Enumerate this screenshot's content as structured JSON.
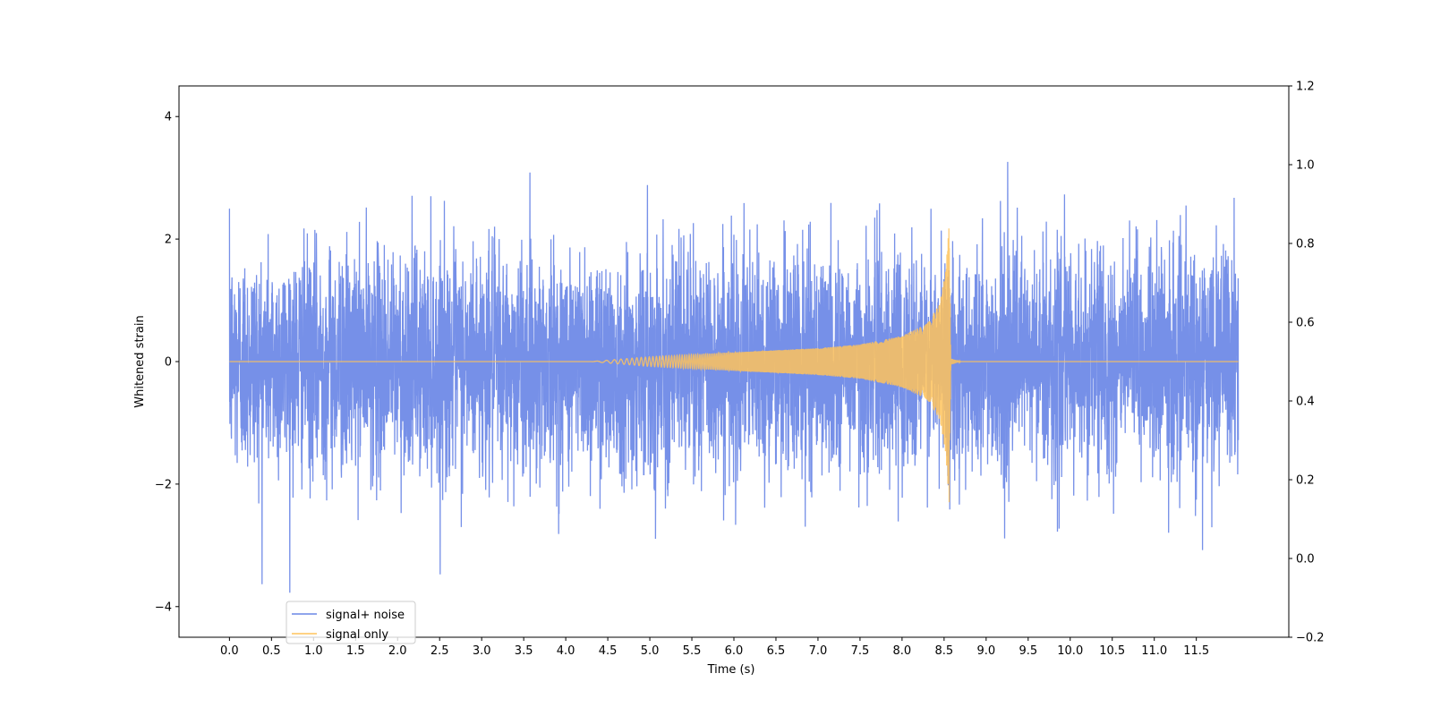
{
  "chart_data": {
    "type": "line",
    "title": "",
    "xlabel": "Time (s)",
    "ylabel": "Whitened strain",
    "y2label": "",
    "xlim": [
      -0.6,
      12.6
    ],
    "ylim": [
      -4.5,
      4.5
    ],
    "y2lim": [
      -0.2,
      1.2
    ],
    "xticks": [
      "0.0",
      "0.5",
      "1.0",
      "1.5",
      "2.0",
      "2.5",
      "3.0",
      "3.5",
      "4.0",
      "4.5",
      "5.0",
      "5.5",
      "6.0",
      "6.5",
      "7.0",
      "7.5",
      "8.0",
      "8.5",
      "9.0",
      "9.5",
      "10.0",
      "10.5",
      "11.0",
      "11.5"
    ],
    "yticks": [
      "−4",
      "−2",
      "0",
      "2",
      "4"
    ],
    "y2ticks": [
      "−0.2",
      "0.0",
      "0.2",
      "0.4",
      "0.6",
      "0.8",
      "1.0",
      "1.2"
    ],
    "legend": {
      "location": "lower-left",
      "entries": [
        "signal+ noise",
        "signal only"
      ]
    },
    "series": [
      {
        "name": "signal+ noise",
        "color": "#6a87e6",
        "description_values": {
          "time_range": [
            0.0,
            12.0
          ],
          "typical_envelope": [
            -2.0,
            2.0
          ],
          "extremes": [
            -4.1,
            4.1
          ]
        }
      },
      {
        "name": "signal only",
        "color": "#ffc35c",
        "chirp": {
          "start": 4.3,
          "merger": 8.56,
          "end": 12.0,
          "envelope_points": [
            [
              4.3,
              0.0
            ],
            [
              5.0,
              0.08
            ],
            [
              6.0,
              0.15
            ],
            [
              7.0,
              0.22
            ],
            [
              7.5,
              0.28
            ],
            [
              8.0,
              0.42
            ],
            [
              8.3,
              0.62
            ],
            [
              8.45,
              0.95
            ],
            [
              8.52,
              1.5
            ],
            [
              8.56,
              2.3
            ],
            [
              8.58,
              0.05
            ],
            [
              8.7,
              0.0
            ]
          ]
        }
      }
    ]
  }
}
